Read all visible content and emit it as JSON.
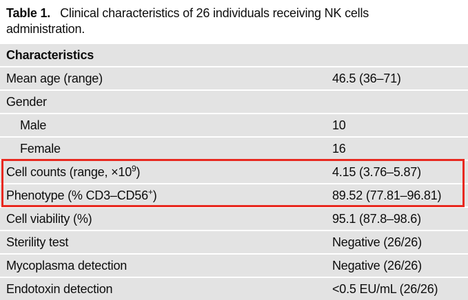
{
  "title": {
    "label": "Table 1.",
    "text": "Clinical characteristics of 26 individuals receiving NK cells administration."
  },
  "table": {
    "header": "Characteristics",
    "rows": [
      {
        "label": "Mean age (range)",
        "sup": "",
        "suffix": "",
        "value": "46.5 (36–71)"
      },
      {
        "label": "Gender",
        "sup": "",
        "suffix": "",
        "value": ""
      },
      {
        "label": "Male",
        "sup": "",
        "suffix": "",
        "value": "10"
      },
      {
        "label": "Female",
        "sup": "",
        "suffix": "",
        "value": "16"
      },
      {
        "label": "Cell counts (range, ×10",
        "sup": "9",
        "suffix": ")",
        "value": "4.15 (3.76–5.87)"
      },
      {
        "label": "Phenotype (% CD3–CD56",
        "sup": "+",
        "suffix": ")",
        "value": "89.52 (77.81–96.81)"
      },
      {
        "label": "Cell viability (%)",
        "sup": "",
        "suffix": "",
        "value": "95.1 (87.8–98.6)"
      },
      {
        "label": "Sterility test",
        "sup": "",
        "suffix": "",
        "value": "Negative (26/26)"
      },
      {
        "label": "Mycoplasma detection",
        "sup": "",
        "suffix": "",
        "value": "Negative (26/26)"
      },
      {
        "label": "Endotoxin detection",
        "sup": "",
        "suffix": "",
        "value": "<0.5 EU/mL (26/26)"
      }
    ]
  },
  "highlight": {
    "color": "#e8291f"
  }
}
